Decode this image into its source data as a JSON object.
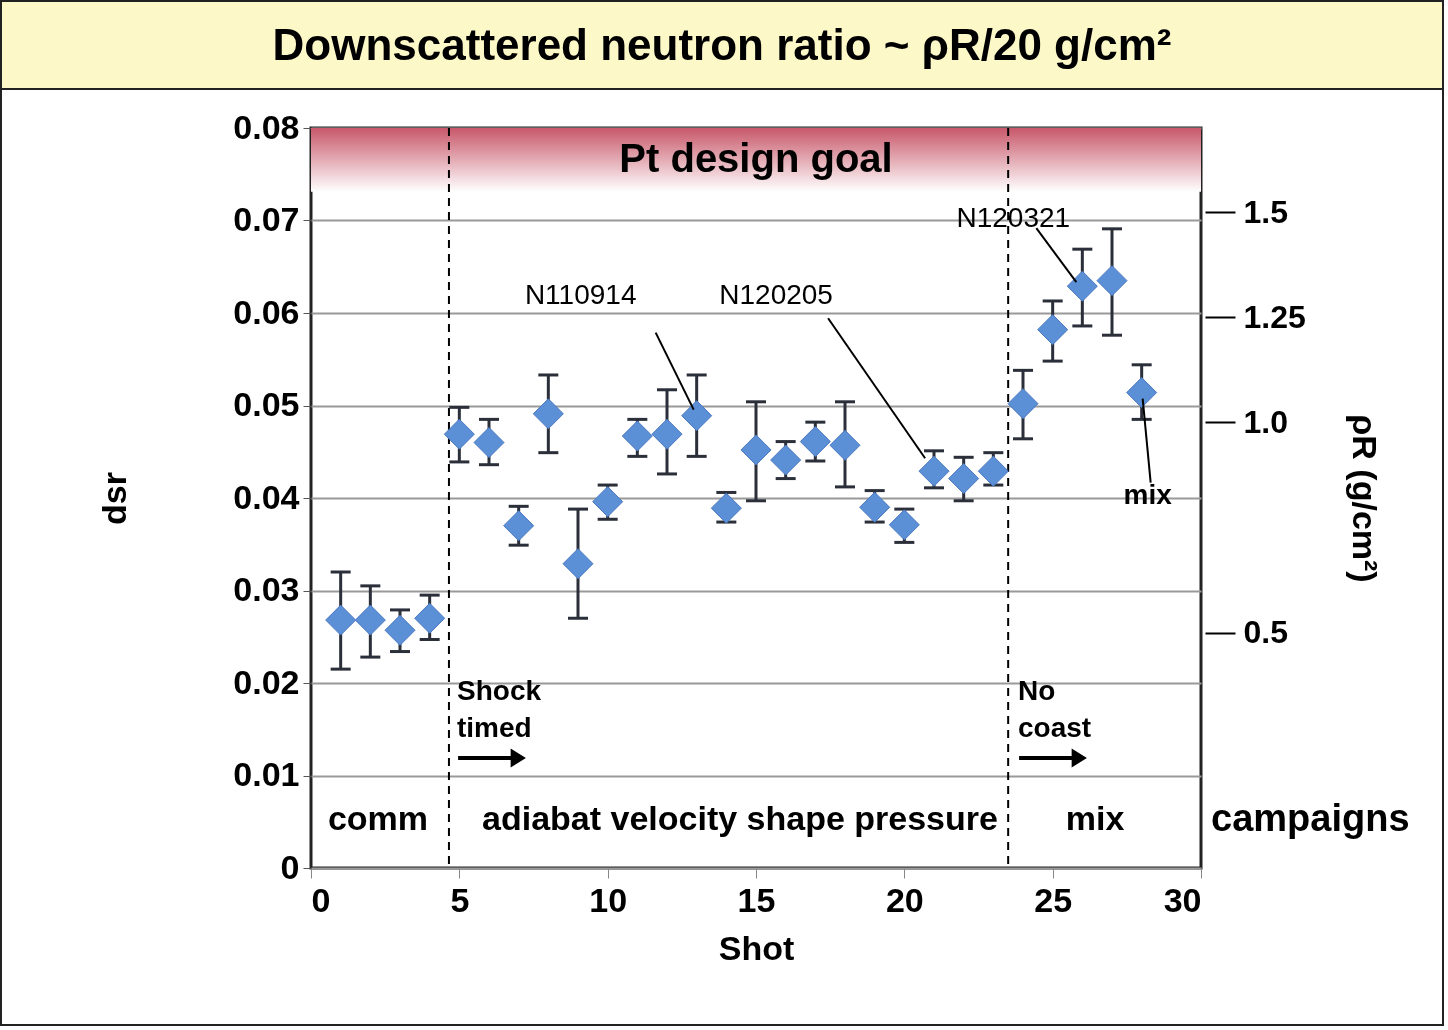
{
  "chart_data": {
    "type": "scatter",
    "title": "Downscattered neutron ratio ~ ρR/20 g/cm²",
    "xlabel": "Shot",
    "ylabel": "dsr",
    "y2label": "ρR (g/cm²)",
    "x": [
      1,
      2,
      3,
      4,
      5,
      6,
      7,
      8,
      9,
      10,
      11,
      12,
      13,
      14,
      15,
      16,
      17,
      18,
      19,
      20,
      21,
      22,
      23,
      24,
      25,
      26,
      27,
      28
    ],
    "series": [
      {
        "color": "#5b8fd6",
        "values": [
          0.0268,
          0.0268,
          0.0257,
          0.027,
          0.0469,
          0.046,
          0.037,
          0.0491,
          0.0329,
          0.0396,
          0.0467,
          0.0469,
          0.0489,
          0.0389,
          0.0452,
          0.0441,
          0.0461,
          0.0457,
          0.039,
          0.0371,
          0.0429,
          0.0421,
          0.0429,
          0.0502,
          0.0582,
          0.0629,
          0.0635,
          0.0514
        ],
        "errors": [
          [
            0.0215,
            0.032
          ],
          [
            0.0228,
            0.0305
          ],
          [
            0.0234,
            0.0279
          ],
          [
            0.0247,
            0.0295
          ],
          [
            0.0439,
            0.0498
          ],
          [
            0.0436,
            0.0485
          ],
          [
            0.0349,
            0.0391
          ],
          [
            0.0449,
            0.0533
          ],
          [
            0.027,
            0.0388
          ],
          [
            0.0377,
            0.0414
          ],
          [
            0.0445,
            0.0485
          ],
          [
            0.0426,
            0.0517
          ],
          [
            0.0445,
            0.0533
          ],
          [
            0.0374,
            0.0406
          ],
          [
            0.0397,
            0.0504
          ],
          [
            0.0421,
            0.0461
          ],
          [
            0.044,
            0.0482
          ],
          [
            0.0412,
            0.0504
          ],
          [
            0.0374,
            0.0408
          ],
          [
            0.0352,
            0.0388
          ],
          [
            0.0411,
            0.0451
          ],
          [
            0.0397,
            0.0444
          ],
          [
            0.0414,
            0.0449
          ],
          [
            0.0464,
            0.0538
          ],
          [
            0.0548,
            0.0613
          ],
          [
            0.0586,
            0.0669
          ],
          [
            0.0576,
            0.0691
          ],
          [
            0.0485,
            0.0544
          ]
        ]
      }
    ],
    "xlim": [
      0,
      30
    ],
    "xticks": [
      0,
      5,
      10,
      15,
      20,
      25,
      30
    ],
    "ylim": [
      0,
      0.08
    ],
    "yticks": [
      0,
      0.01,
      0.02,
      0.03,
      0.04,
      0.05,
      0.06,
      0.07,
      0.08
    ],
    "y2lim": [
      -0.06,
      1.7
    ],
    "y2ticks": [
      0.5,
      {
        "value": 1,
        "label": "1.0"
      },
      1.25,
      1.5
    ],
    "grid": "y",
    "marker": "diamond",
    "ref_lines": [
      {
        "axis": "x",
        "value": 4.65,
        "color": "#000000",
        "line_style": "dashed"
      },
      {
        "axis": "x",
        "value": 23.5,
        "color": "#000000",
        "line_style": "dashed"
      }
    ],
    "bands": [
      {
        "axis": "y",
        "from": 0.0731,
        "to": 0.08,
        "label": "Pt design goal",
        "color": "#c8586a"
      }
    ],
    "annotations": [
      {
        "text": "N110914",
        "x": 13,
        "y": 0.0489
      },
      {
        "text": "N120205",
        "x": 20.7,
        "y": 0.0443
      },
      {
        "text": "N120321",
        "x": 26,
        "y": 0.0629
      },
      {
        "text": "mix",
        "x": 28,
        "y": 0.0514
      },
      "Shock\ntimed",
      "No\ncoast",
      "comm",
      "adiabat velocity shape pressure",
      "mix",
      "campaigns"
    ]
  }
}
